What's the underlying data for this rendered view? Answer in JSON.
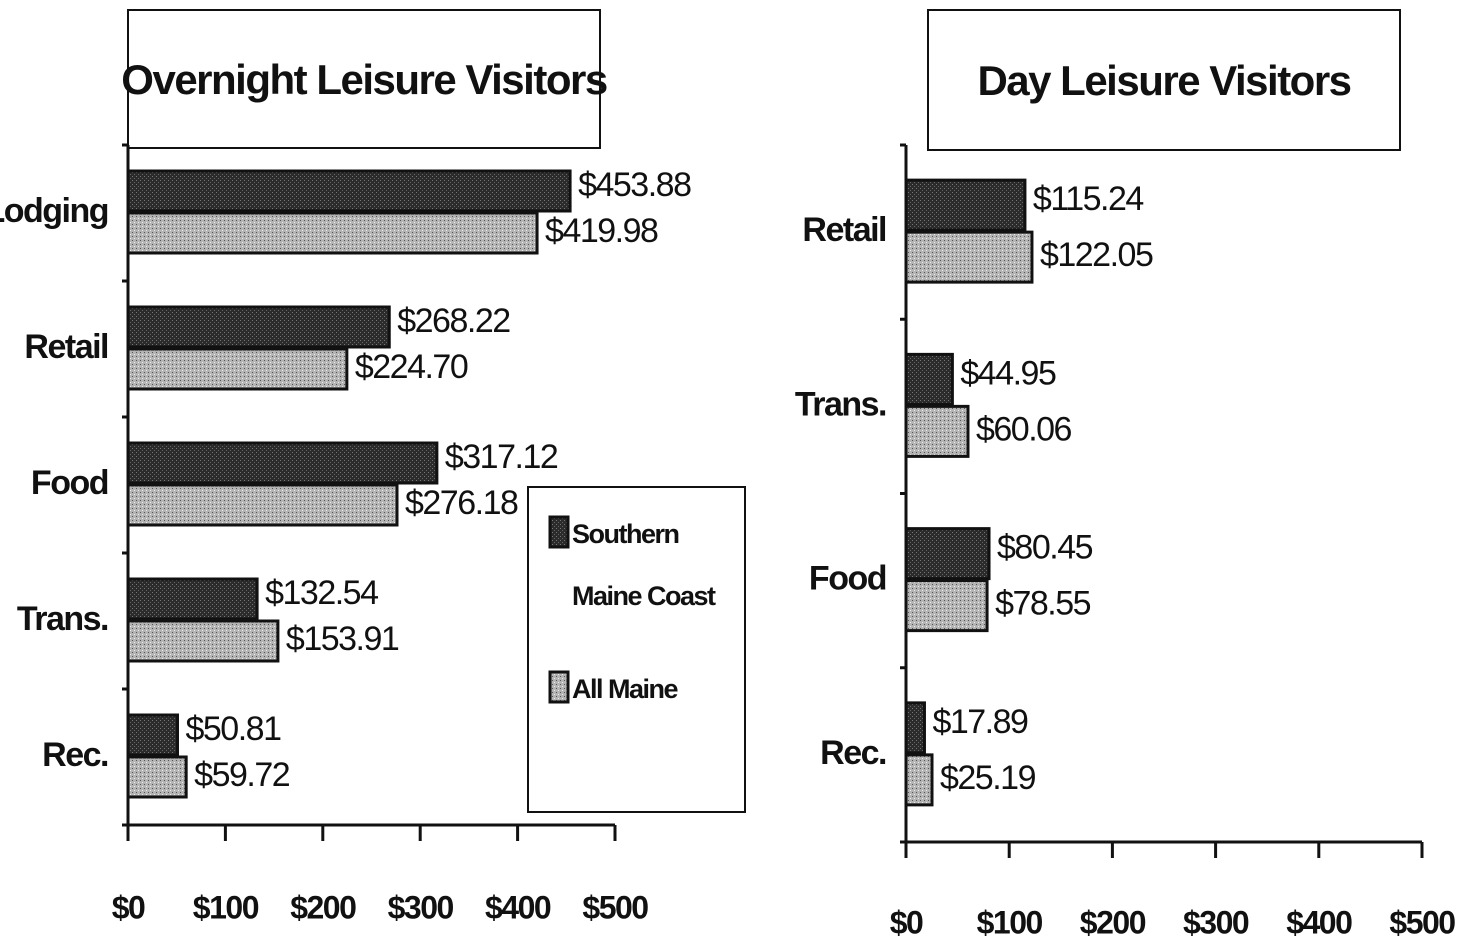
{
  "chart_data": [
    {
      "type": "barh",
      "title": "Overnight Leisure Visitors",
      "categories": [
        "Lodging",
        "Retail",
        "Food",
        "Trans.",
        "Rec."
      ],
      "series": [
        {
          "name": "Southern Maine Coast",
          "color": "#2b2b2b",
          "values": [
            453.88,
            268.22,
            317.12,
            132.54,
            50.81
          ],
          "value_labels": [
            "$453.88",
            "$268.22",
            "$317.12",
            "$132.54",
            "$50.81"
          ]
        },
        {
          "name": "All Maine",
          "color": "#b4b4b4",
          "values": [
            419.98,
            224.7,
            276.18,
            153.91,
            59.72
          ],
          "value_labels": [
            "$419.98",
            "$224.70",
            "$276.18",
            "$153.91",
            "$59.72"
          ]
        }
      ],
      "xlim": [
        0,
        500
      ],
      "xticks": [
        {
          "value": 0,
          "label": "$0"
        },
        {
          "value": 100,
          "label": "$100"
        },
        {
          "value": 200,
          "label": "$200"
        },
        {
          "value": 300,
          "label": "$300"
        },
        {
          "value": 400,
          "label": "$400"
        },
        {
          "value": 500,
          "label": "$500"
        }
      ],
      "legend": "lower right"
    },
    {
      "type": "barh",
      "title": "Day Leisure Visitors",
      "categories": [
        "Retail",
        "Trans.",
        "Food",
        "Rec."
      ],
      "series": [
        {
          "color": "#2b2b2b",
          "values": [
            115.24,
            44.95,
            80.45,
            17.89
          ],
          "value_labels": [
            "$115.24",
            "$44.95",
            "$80.45",
            "$17.89"
          ]
        },
        {
          "color": "#b4b4b4",
          "values": [
            122.05,
            60.06,
            78.55,
            25.19
          ],
          "value_labels": [
            "$122.05",
            "$60.06",
            "$78.55",
            "$25.19"
          ]
        }
      ],
      "xlim": [
        0,
        500
      ],
      "xticks": [
        {
          "value": 0,
          "label": "$0"
        },
        {
          "value": 100,
          "label": "$100"
        },
        {
          "value": 200,
          "label": "$200"
        },
        {
          "value": 300,
          "label": "$300"
        },
        {
          "value": 400,
          "label": "$400"
        },
        {
          "value": 500,
          "label": "$500"
        }
      ]
    }
  ]
}
